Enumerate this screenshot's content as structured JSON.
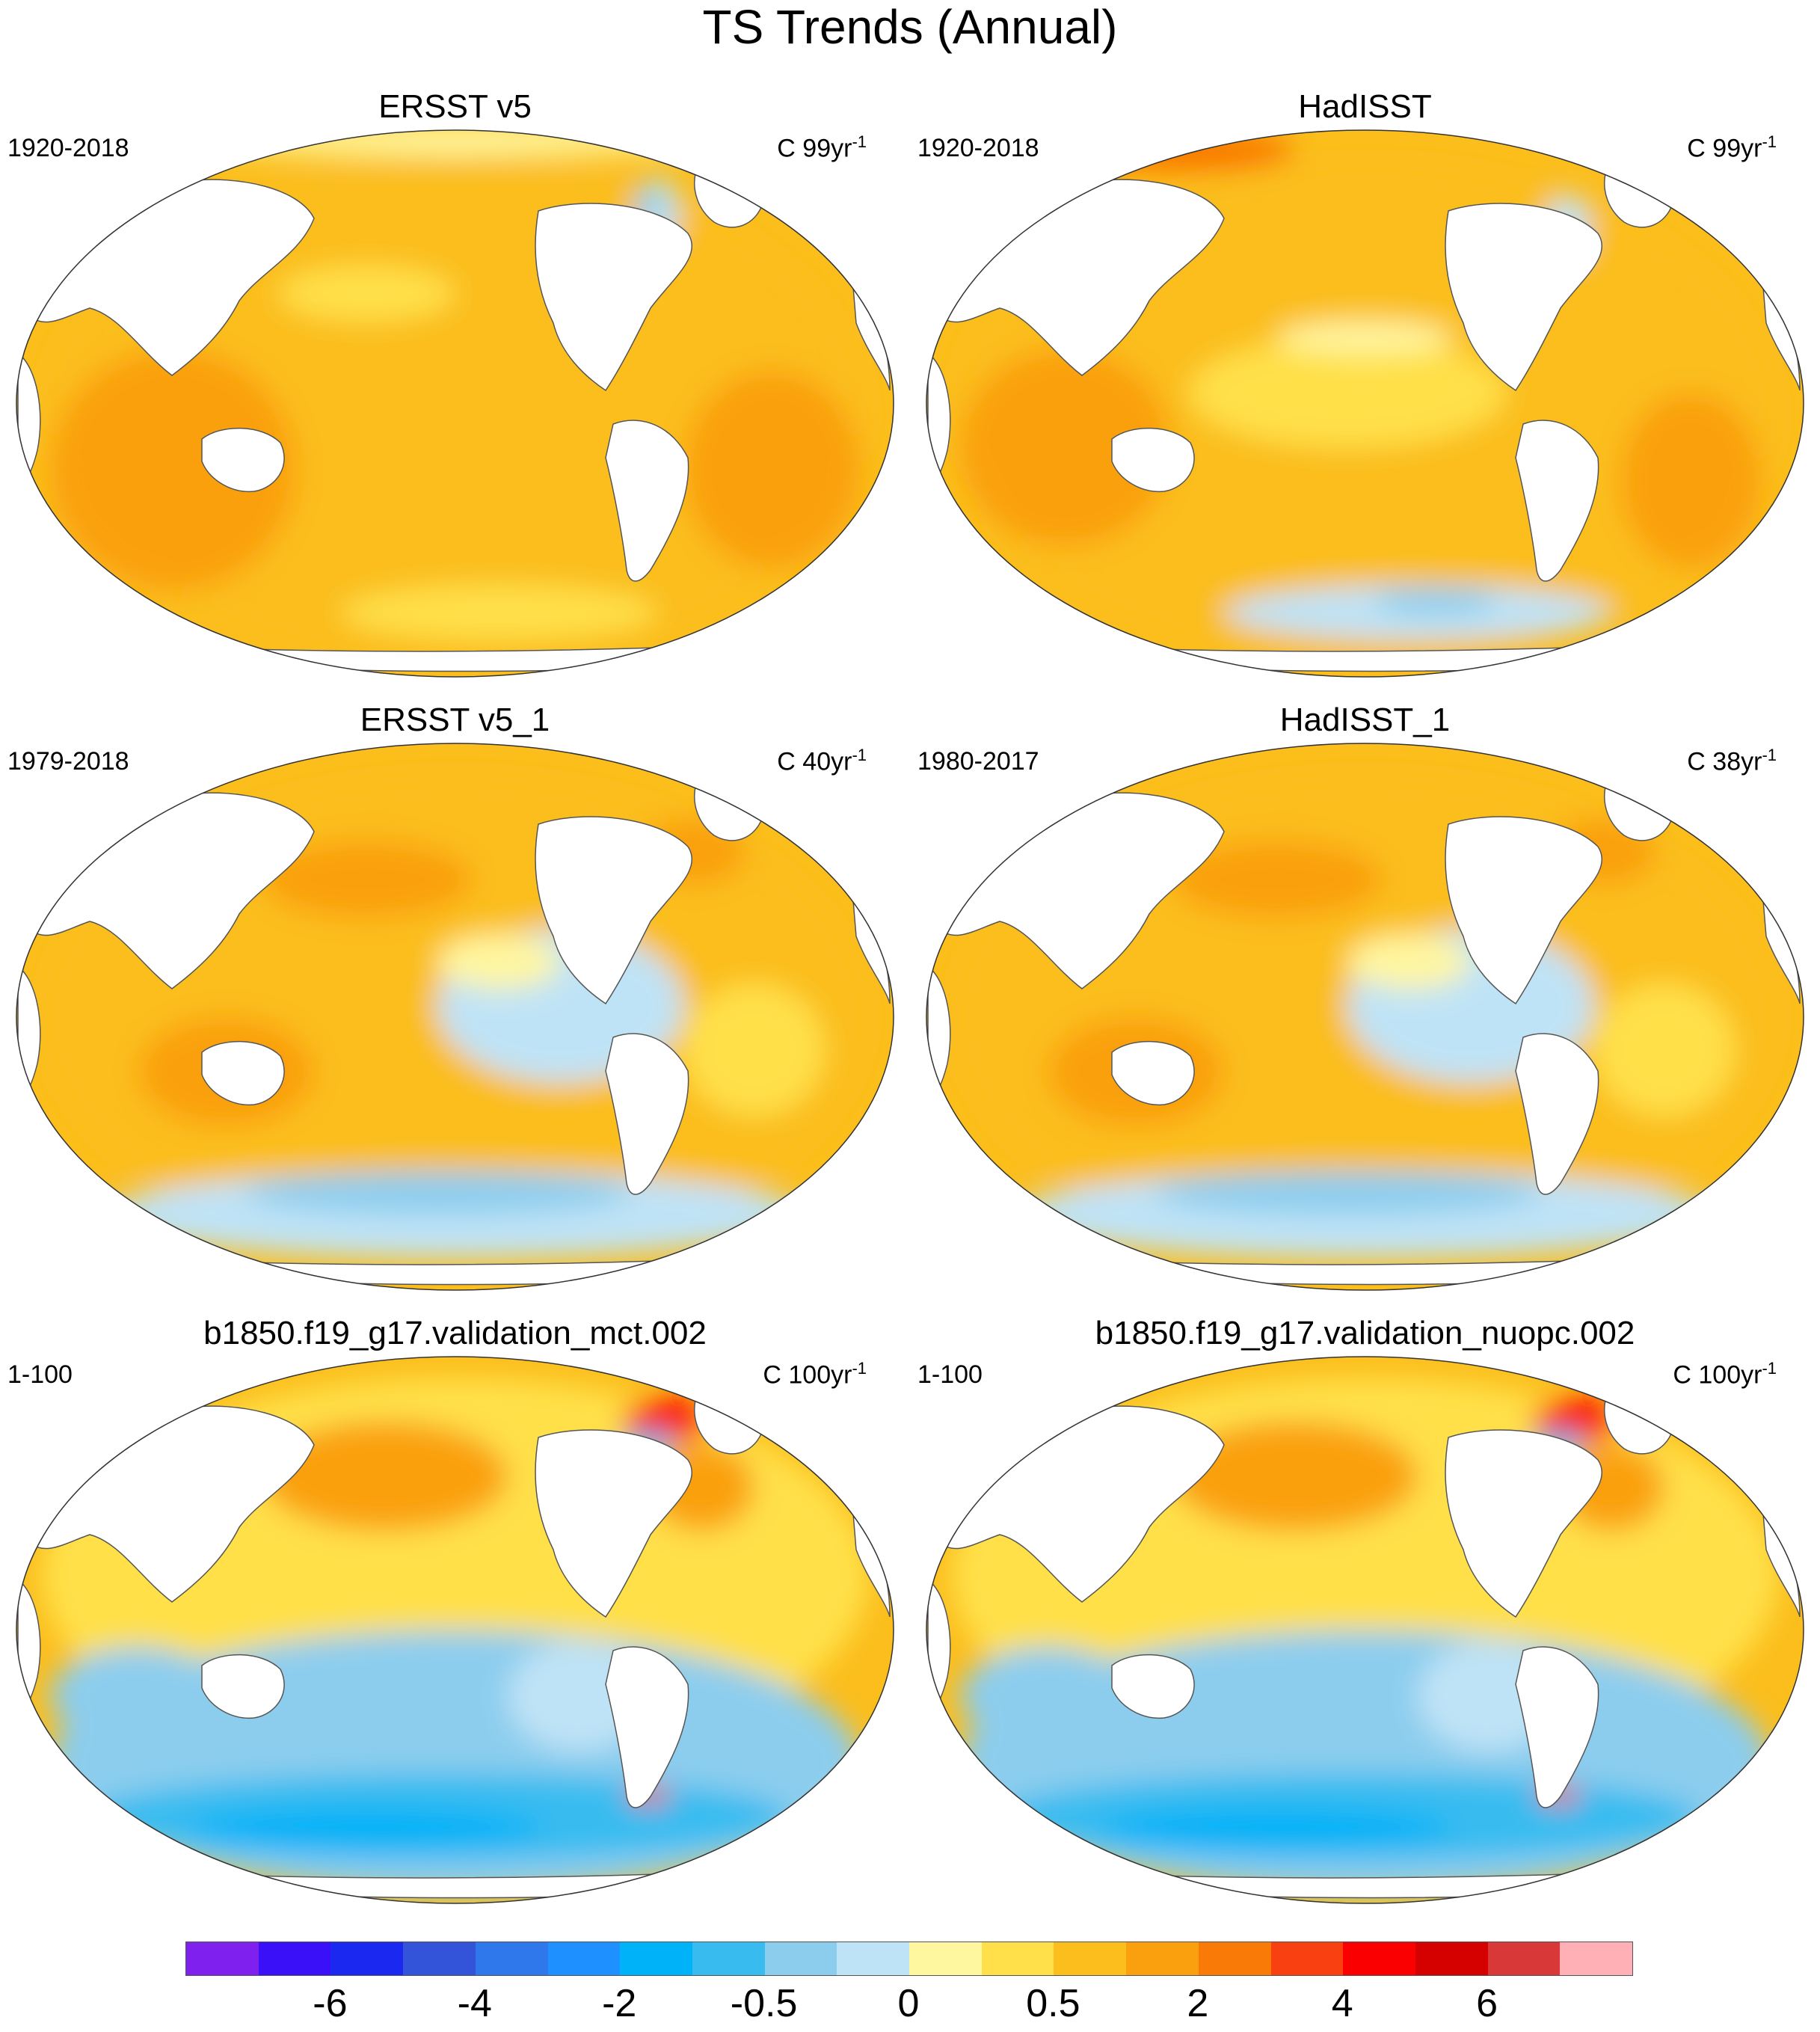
{
  "figure": {
    "title": "TS Trends (Annual)"
  },
  "panels": [
    {
      "title": "ERSST v5",
      "period": "1920-2018",
      "units": "C 99yr",
      "units_exp": "-1",
      "style": "obs_warm"
    },
    {
      "title": "HadISST",
      "period": "1920-2018",
      "units": "C 99yr",
      "units_exp": "-1",
      "style": "obs_warm_noisy"
    },
    {
      "title": "ERSST v5_1",
      "period": "1979-2018",
      "units": "C 40yr",
      "units_exp": "-1",
      "style": "recent"
    },
    {
      "title": "HadISST_1",
      "period": "1980-2017",
      "units": "C 38yr",
      "units_exp": "-1",
      "style": "recent"
    },
    {
      "title": "b1850.f19_g17.validation_mct.002",
      "period": "1-100",
      "units": "C 100yr",
      "units_exp": "-1",
      "style": "model"
    },
    {
      "title": "b1850.f19_g17.validation_nuopc.002",
      "period": "1-100",
      "units": "C 100yr",
      "units_exp": "-1",
      "style": "model"
    }
  ],
  "colorbar": {
    "colors": [
      "#7f20ee",
      "#3a10f8",
      "#1a28f0",
      "#3354d8",
      "#2f78ec",
      "#1e90ff",
      "#00b2f8",
      "#38bcf0",
      "#8ccdee",
      "#bfe3f6",
      "#fff6a0",
      "#ffe04a",
      "#fbbe1c",
      "#faa00e",
      "#f97a06",
      "#f84010",
      "#fb0000",
      "#d50000",
      "#d83838",
      "#ffb0b6"
    ],
    "labels": [
      "-6",
      "-4",
      "-2",
      "-0.5",
      "0",
      "0.5",
      "2",
      "4",
      "6"
    ],
    "label_boundaries": [
      2,
      4,
      6,
      8,
      10,
      12,
      14,
      16,
      18
    ]
  },
  "map": {
    "projection": "Robinson",
    "center_longitude": "180",
    "land_color": "#ffffff",
    "coastline_color": "#555555"
  }
}
